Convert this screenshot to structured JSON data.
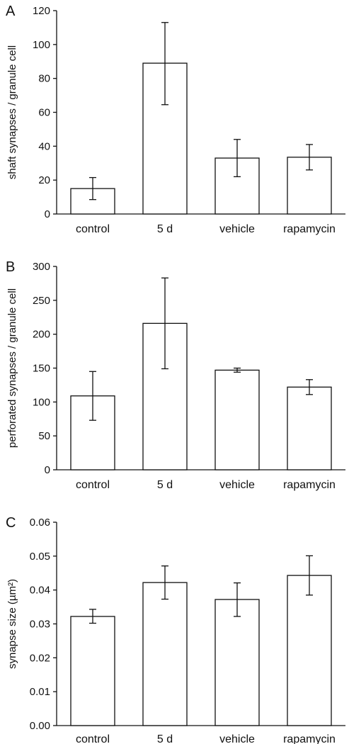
{
  "chart_data": [
    {
      "panel_label": "A",
      "type": "bar",
      "categories": [
        "control",
        "5 d",
        "vehicle",
        "rapamycin"
      ],
      "values": [
        15,
        89,
        33,
        33.5
      ],
      "error_low": [
        8.5,
        64.5,
        22,
        26
      ],
      "error_high": [
        21.5,
        113,
        44,
        41
      ],
      "xlabel": "",
      "ylabel": "shaft synapses / granule cell",
      "ylim": [
        0,
        120
      ],
      "yticks": [
        "0",
        "20",
        "40",
        "60",
        "80",
        "100",
        "120"
      ],
      "grid": false
    },
    {
      "panel_label": "B",
      "type": "bar",
      "categories": [
        "control",
        "5 d",
        "vehicle",
        "rapamycin"
      ],
      "values": [
        109,
        216,
        147,
        122
      ],
      "error_low": [
        73,
        149,
        144,
        111
      ],
      "error_high": [
        145,
        283,
        150,
        133
      ],
      "xlabel": "",
      "ylabel": "perforated synapses / granule cell",
      "ylim": [
        0,
        300
      ],
      "yticks": [
        "0",
        "50",
        "100",
        "150",
        "200",
        "250",
        "300"
      ],
      "grid": false
    },
    {
      "panel_label": "C",
      "type": "bar",
      "categories": [
        "control",
        "5 d",
        "vehicle",
        "rapamycin"
      ],
      "values": [
        0.0322,
        0.0422,
        0.0372,
        0.0443
      ],
      "error_low": [
        0.0302,
        0.0373,
        0.0322,
        0.0385
      ],
      "error_high": [
        0.0343,
        0.0471,
        0.0421,
        0.0501
      ],
      "xlabel": "",
      "ylabel": "synapse size (µm²)",
      "ylim": [
        0,
        0.06
      ],
      "yticks": [
        "0.00",
        "0.01",
        "0.02",
        "0.03",
        "0.04",
        "0.05",
        "0.06"
      ],
      "grid": false
    }
  ]
}
